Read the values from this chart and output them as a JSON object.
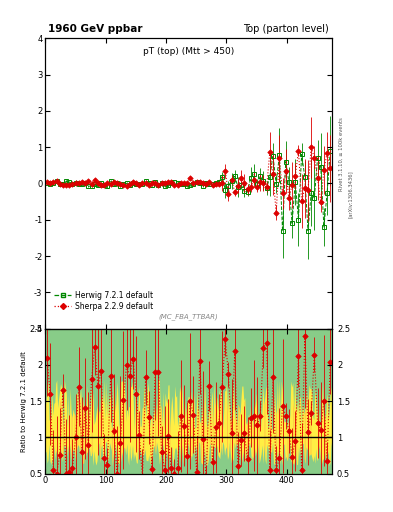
{
  "title_left": "1960 GeV ppbar",
  "title_right": "Top (parton level)",
  "main_title": "pT (top) (Mtt > 450)",
  "annotation": "(MC_FBA_TTBAR)",
  "right_label": "Rivet 3.1.10, ≥ 100k events",
  "arxiv_label": "[arXiv:1306.3436]",
  "ylabel_ratio": "Ratio to Herwig 7.2.1 default",
  "xlim": [
    0,
    475
  ],
  "ylim_main": [
    -4,
    4
  ],
  "ylim_ratio": [
    0.5,
    2.5
  ],
  "herwig_color": "#008800",
  "sherpa_color": "#dd0000",
  "band_green": "#88cc88",
  "band_yellow": "#ffee44",
  "band_orange": "#ffaa44",
  "legend_herwig": "Herwig 7.2.1 default",
  "legend_sherpa": "Sherpa 2.2.9 default",
  "yticks_main": [
    -4,
    -3,
    -2,
    -1,
    0,
    1,
    2,
    3,
    4
  ],
  "yticks_ratio": [
    0.5,
    1.0,
    1.5,
    2.0,
    2.5
  ],
  "xticks": [
    0,
    100,
    200,
    300,
    400
  ]
}
